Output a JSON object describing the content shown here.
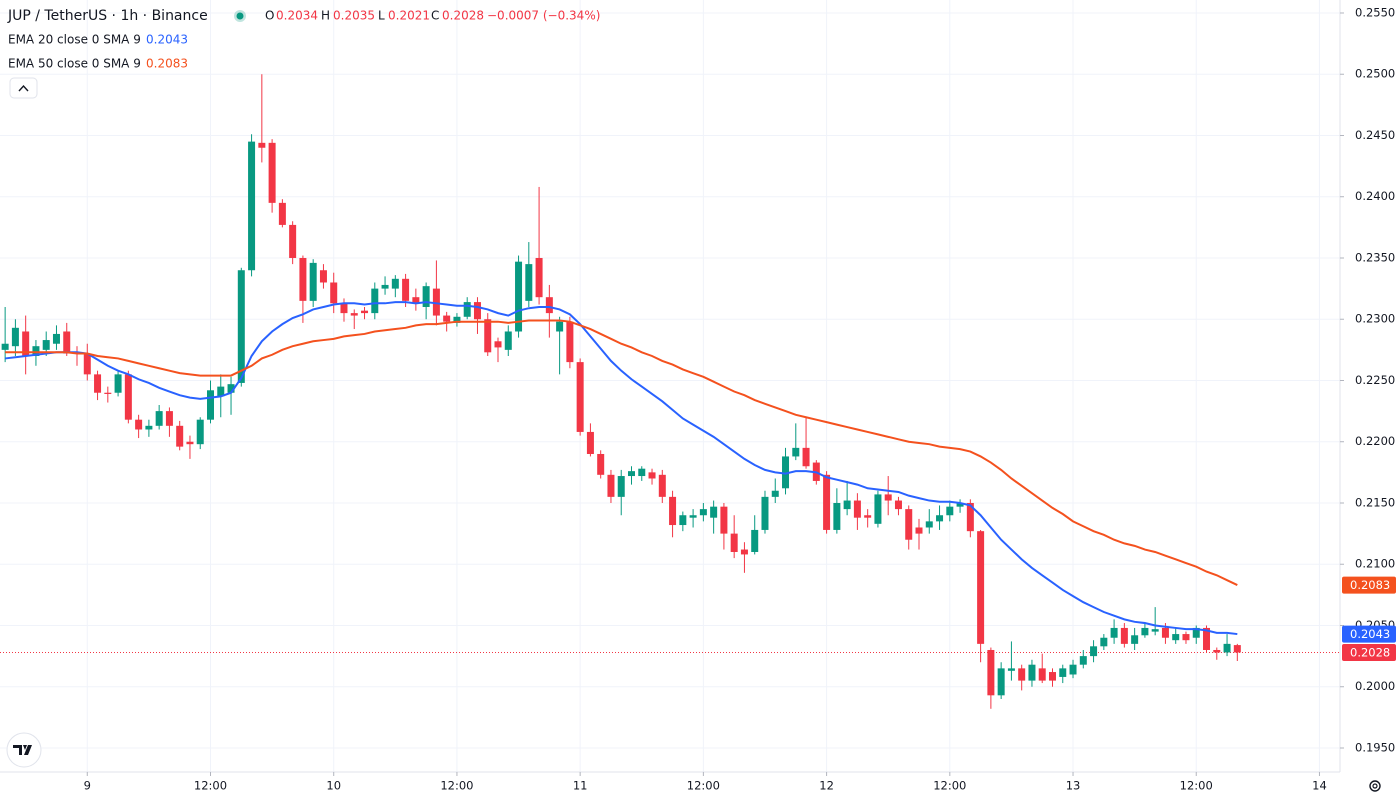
{
  "chart_data": {
    "type": "candlestick",
    "title": "JUP / TetherUS · 1h · Binance",
    "ohlc": [
      {
        "name": "O",
        "value": 0.2034
      },
      {
        "name": "H",
        "value": 0.2035
      },
      {
        "name": "L",
        "value": 0.2021
      },
      {
        "name": "C",
        "value": 0.2028
      }
    ],
    "change": "−0.0007 (−0.34%)",
    "up_color": "#089981",
    "down_color": "#f23645",
    "xlim": [
      -8.5,
      122
    ],
    "ylim": [
      0.19304,
      0.25606
    ],
    "grid": true,
    "xticks": [
      {
        "value": 0,
        "label": "9"
      },
      {
        "value": 12,
        "label": "12:00"
      },
      {
        "value": 24,
        "label": "10"
      },
      {
        "value": 36,
        "label": "12:00"
      },
      {
        "value": 48,
        "label": "11"
      },
      {
        "value": 60,
        "label": "12:00"
      },
      {
        "value": 72,
        "label": "12"
      },
      {
        "value": 84,
        "label": "12:00"
      },
      {
        "value": 96,
        "label": "13"
      },
      {
        "value": 108,
        "label": "12:00"
      },
      {
        "value": 120,
        "label": "14"
      }
    ],
    "yticks": [
      {
        "value": 0.195,
        "label": "0.1950"
      },
      {
        "value": 0.2,
        "label": "0.2000"
      },
      {
        "value": 0.205,
        "label": "0.2050"
      },
      {
        "value": 0.21,
        "label": "0.2100"
      },
      {
        "value": 0.215,
        "label": "0.2150"
      },
      {
        "value": 0.22,
        "label": "0.2200"
      },
      {
        "value": 0.225,
        "label": "0.2250"
      },
      {
        "value": 0.23,
        "label": "0.2300"
      },
      {
        "value": 0.235,
        "label": "0.2350"
      },
      {
        "value": 0.24,
        "label": "0.2400"
      },
      {
        "value": 0.245,
        "label": "0.2450"
      },
      {
        "value": 0.25,
        "label": "0.2500"
      },
      {
        "value": 0.255,
        "label": "0.2550"
      }
    ],
    "x": [
      -8,
      -7,
      -6,
      -5,
      -4,
      -3,
      -2,
      -1,
      0,
      1,
      2,
      3,
      4,
      5,
      6,
      7,
      8,
      9,
      10,
      11,
      12,
      13,
      14,
      15,
      16,
      17,
      18,
      19,
      20,
      21,
      22,
      23,
      24,
      25,
      26,
      27,
      28,
      29,
      30,
      31,
      32,
      33,
      34,
      35,
      36,
      37,
      38,
      39,
      40,
      41,
      42,
      43,
      44,
      45,
      46,
      47,
      48,
      49,
      50,
      51,
      52,
      53,
      54,
      55,
      56,
      57,
      58,
      59,
      60,
      61,
      62,
      63,
      64,
      65,
      66,
      67,
      68,
      69,
      70,
      71,
      72,
      73,
      74,
      75,
      76,
      77,
      78,
      79,
      80,
      81,
      82,
      83,
      84,
      85,
      86,
      87,
      88,
      89,
      90,
      91,
      92,
      93,
      94,
      95,
      96,
      97,
      98,
      99,
      100,
      101,
      102,
      103,
      104,
      105,
      106,
      107,
      108,
      109,
      110,
      111,
      112
    ],
    "open": [
      0.2275,
      0.2278,
      0.229,
      0.227,
      0.2275,
      0.228,
      0.229,
      0.2273,
      0.2272,
      0.2255,
      0.224,
      0.224,
      0.2255,
      0.2218,
      0.221,
      0.2213,
      0.2225,
      0.2213,
      0.22,
      0.2198,
      0.2218,
      0.2237,
      0.224,
      0.2248,
      0.234,
      0.2444,
      0.2444,
      0.2395,
      0.2377,
      0.235,
      0.2315,
      0.234,
      0.233,
      0.2313,
      0.2305,
      0.2307,
      0.2305,
      0.2325,
      0.2325,
      0.2333,
      0.2318,
      0.231,
      0.2325,
      0.2303,
      0.2297,
      0.2302,
      0.2314,
      0.23,
      0.2282,
      0.2275,
      0.229,
      0.2315,
      0.235,
      0.2318,
      0.229,
      0.2298,
      0.2265,
      0.2208,
      0.219,
      0.2173,
      0.2155,
      0.2172,
      0.2172,
      0.2175,
      0.2173,
      0.2155,
      0.2132,
      0.2138,
      0.214,
      0.2138,
      0.2147,
      0.2125,
      0.2112,
      0.211,
      0.2128,
      0.2155,
      0.2162,
      0.2188,
      0.2195,
      0.2183,
      0.2173,
      0.2128,
      0.2145,
      0.2152,
      0.214,
      0.2133,
      0.2157,
      0.2152,
      0.2145,
      0.213,
      0.213,
      0.2135,
      0.214,
      0.2147,
      0.215,
      0.2127,
      0.203,
      0.1993,
      0.2013,
      0.2015,
      0.2005,
      0.2015,
      0.2012,
      0.2008,
      0.201,
      0.2018,
      0.2025,
      0.2033,
      0.204,
      0.2048,
      0.2035,
      0.2042,
      0.2045,
      0.2048,
      0.2038,
      0.2043,
      0.204,
      0.2048,
      0.203,
      0.2028,
      0.2034
    ],
    "high": [
      0.231,
      0.23,
      0.2303,
      0.2283,
      0.229,
      0.2295,
      0.2297,
      0.2278,
      0.228,
      0.2258,
      0.2245,
      0.2258,
      0.2258,
      0.2222,
      0.2218,
      0.223,
      0.2228,
      0.2217,
      0.2205,
      0.222,
      0.225,
      0.2255,
      0.2253,
      0.2342,
      0.2451,
      0.25,
      0.2447,
      0.2398,
      0.238,
      0.2352,
      0.2349,
      0.2345,
      0.2338,
      0.2317,
      0.2308,
      0.231,
      0.233,
      0.2335,
      0.2336,
      0.2337,
      0.2325,
      0.233,
      0.2348,
      0.2306,
      0.2305,
      0.2318,
      0.2318,
      0.2305,
      0.2285,
      0.2295,
      0.2352,
      0.2363,
      0.2408,
      0.2328,
      0.2302,
      0.2302,
      0.2268,
      0.2215,
      0.2193,
      0.2177,
      0.2177,
      0.218,
      0.218,
      0.2178,
      0.2177,
      0.216,
      0.2143,
      0.2145,
      0.215,
      0.2152,
      0.215,
      0.214,
      0.2118,
      0.214,
      0.216,
      0.217,
      0.2195,
      0.2215,
      0.222,
      0.2185,
      0.2176,
      0.2162,
      0.2168,
      0.2158,
      0.2145,
      0.216,
      0.2172,
      0.2155,
      0.2148,
      0.2137,
      0.2145,
      0.2148,
      0.2152,
      0.2153,
      0.2153,
      0.2128,
      0.2032,
      0.202,
      0.2037,
      0.2018,
      0.2022,
      0.2027,
      0.2015,
      0.2018,
      0.2022,
      0.203,
      0.2038,
      0.2043,
      0.2055,
      0.2052,
      0.2048,
      0.2052,
      0.2065,
      0.2052,
      0.2048,
      0.2045,
      0.205,
      0.205,
      0.2032,
      0.2043,
      0.2035
    ],
    "low": [
      0.2265,
      0.227,
      0.2255,
      0.2262,
      0.227,
      0.2275,
      0.227,
      0.2262,
      0.225,
      0.2234,
      0.2232,
      0.2237,
      0.2215,
      0.2203,
      0.2204,
      0.221,
      0.2204,
      0.2193,
      0.2186,
      0.2194,
      0.2215,
      0.222,
      0.2222,
      0.2245,
      0.2335,
      0.2428,
      0.2387,
      0.2375,
      0.2345,
      0.2297,
      0.231,
      0.2325,
      0.2305,
      0.2298,
      0.2292,
      0.23,
      0.23,
      0.232,
      0.2318,
      0.231,
      0.2307,
      0.23,
      0.2295,
      0.229,
      0.2294,
      0.23,
      0.2288,
      0.227,
      0.2265,
      0.227,
      0.2285,
      0.231,
      0.2312,
      0.2285,
      0.2255,
      0.226,
      0.2205,
      0.2188,
      0.217,
      0.215,
      0.214,
      0.2165,
      0.2168,
      0.2165,
      0.215,
      0.2122,
      0.2127,
      0.213,
      0.2135,
      0.2125,
      0.2112,
      0.2105,
      0.2093,
      0.2108,
      0.2125,
      0.215,
      0.2157,
      0.2185,
      0.2178,
      0.2165,
      0.2125,
      0.2125,
      0.214,
      0.2128,
      0.213,
      0.213,
      0.214,
      0.214,
      0.2112,
      0.2112,
      0.2125,
      0.2128,
      0.2135,
      0.2142,
      0.2122,
      0.202,
      0.1982,
      0.199,
      0.2005,
      0.1997,
      0.2,
      0.2003,
      0.2,
      0.2003,
      0.2007,
      0.2015,
      0.202,
      0.203,
      0.2035,
      0.2032,
      0.203,
      0.204,
      0.2042,
      0.2035,
      0.2035,
      0.2035,
      0.2035,
      0.2028,
      0.2022,
      0.2025,
      0.2021
    ],
    "close": [
      0.228,
      0.2293,
      0.227,
      0.2278,
      0.2283,
      0.2288,
      0.2272,
      0.2272,
      0.2255,
      0.224,
      0.2239,
      0.2255,
      0.2218,
      0.221,
      0.2213,
      0.2225,
      0.2213,
      0.2196,
      0.2198,
      0.2218,
      0.2242,
      0.2245,
      0.2247,
      0.234,
      0.2445,
      0.244,
      0.2395,
      0.2377,
      0.235,
      0.2315,
      0.2346,
      0.233,
      0.2313,
      0.2305,
      0.2303,
      0.2305,
      0.2325,
      0.2328,
      0.2333,
      0.2315,
      0.2313,
      0.2327,
      0.2303,
      0.2298,
      0.2302,
      0.2314,
      0.23,
      0.2273,
      0.2277,
      0.229,
      0.2347,
      0.2345,
      0.2318,
      0.2305,
      0.2298,
      0.2265,
      0.2208,
      0.219,
      0.2173,
      0.2155,
      0.2172,
      0.2176,
      0.2178,
      0.217,
      0.2155,
      0.2132,
      0.214,
      0.214,
      0.2145,
      0.2147,
      0.2125,
      0.211,
      0.2108,
      0.2128,
      0.2155,
      0.216,
      0.2188,
      0.2195,
      0.218,
      0.2168,
      0.2128,
      0.215,
      0.2152,
      0.2138,
      0.2138,
      0.2157,
      0.2152,
      0.2145,
      0.212,
      0.2125,
      0.2135,
      0.214,
      0.2147,
      0.215,
      0.2127,
      0.2035,
      0.1993,
      0.2015,
      0.2015,
      0.2005,
      0.2018,
      0.2005,
      0.2005,
      0.2015,
      0.2018,
      0.2025,
      0.2033,
      0.204,
      0.2048,
      0.2035,
      0.2042,
      0.2048,
      0.2047,
      0.204,
      0.2043,
      0.2038,
      0.2048,
      0.203,
      0.2028,
      0.2035,
      0.2028
    ],
    "series": [
      {
        "name": "EMA 20 close 0 SMA 9",
        "color": "#2962ff",
        "last": 0.2043,
        "values": [
          0.2268,
          0.2269,
          0.227,
          0.2271,
          0.2272,
          0.2273,
          0.2273,
          0.2273,
          0.2272,
          0.2267,
          0.2262,
          0.2258,
          0.2255,
          0.2251,
          0.2248,
          0.2244,
          0.2241,
          0.2238,
          0.2236,
          0.2235,
          0.2236,
          0.2237,
          0.224,
          0.2252,
          0.227,
          0.2282,
          0.229,
          0.2296,
          0.2301,
          0.2304,
          0.2308,
          0.231,
          0.2312,
          0.2313,
          0.2313,
          0.2312,
          0.2313,
          0.2313,
          0.2314,
          0.2314,
          0.2313,
          0.2314,
          0.2313,
          0.2312,
          0.2311,
          0.2311,
          0.231,
          0.2308,
          0.2305,
          0.2303,
          0.2307,
          0.2309,
          0.231,
          0.231,
          0.2308,
          0.2304,
          0.2296,
          0.2286,
          0.2276,
          0.2266,
          0.2258,
          0.2251,
          0.2245,
          0.2239,
          0.2233,
          0.2226,
          0.2219,
          0.2214,
          0.2209,
          0.2204,
          0.2198,
          0.2192,
          0.2186,
          0.2181,
          0.2177,
          0.2175,
          0.2174,
          0.2176,
          0.2176,
          0.2175,
          0.2171,
          0.2169,
          0.2167,
          0.2165,
          0.2162,
          0.2161,
          0.216,
          0.2159,
          0.2156,
          0.2154,
          0.2152,
          0.2151,
          0.2151,
          0.215,
          0.2148,
          0.214,
          0.213,
          0.212,
          0.2112,
          0.2104,
          0.2097,
          0.2091,
          0.2085,
          0.2079,
          0.2074,
          0.2069,
          0.2065,
          0.2061,
          0.2058,
          0.2055,
          0.2053,
          0.2052,
          0.205,
          0.2049,
          0.2048,
          0.2047,
          0.2047,
          0.2046,
          0.2044,
          0.2044,
          0.2043
        ]
      },
      {
        "name": "EMA 50 close 0 SMA 9",
        "color": "#f4511e",
        "last": 0.2083,
        "values": [
          0.2273,
          0.2273,
          0.2273,
          0.2273,
          0.2273,
          0.2273,
          0.2273,
          0.2272,
          0.2272,
          0.227,
          0.2269,
          0.2268,
          0.2266,
          0.2264,
          0.2262,
          0.226,
          0.2258,
          0.2256,
          0.2255,
          0.2254,
          0.2254,
          0.2254,
          0.2254,
          0.2258,
          0.2262,
          0.2268,
          0.2271,
          0.2275,
          0.2278,
          0.228,
          0.2282,
          0.2283,
          0.2284,
          0.2286,
          0.2287,
          0.2288,
          0.229,
          0.2291,
          0.2292,
          0.2293,
          0.2295,
          0.2296,
          0.2296,
          0.2297,
          0.2298,
          0.2298,
          0.2298,
          0.2298,
          0.2298,
          0.2297,
          0.2298,
          0.2299,
          0.2299,
          0.2299,
          0.2299,
          0.2298,
          0.2295,
          0.2292,
          0.2288,
          0.2284,
          0.228,
          0.2277,
          0.2273,
          0.227,
          0.2266,
          0.2263,
          0.2259,
          0.2256,
          0.2253,
          0.2249,
          0.2245,
          0.2241,
          0.2238,
          0.2234,
          0.2231,
          0.2228,
          0.2225,
          0.2222,
          0.222,
          0.2218,
          0.2216,
          0.2214,
          0.2212,
          0.221,
          0.2208,
          0.2206,
          0.2204,
          0.2202,
          0.22,
          0.2199,
          0.2198,
          0.2196,
          0.2195,
          0.2194,
          0.2192,
          0.2188,
          0.2183,
          0.2177,
          0.217,
          0.2164,
          0.2158,
          0.2152,
          0.2146,
          0.2141,
          0.2135,
          0.2131,
          0.2127,
          0.2124,
          0.212,
          0.2117,
          0.2115,
          0.2112,
          0.211,
          0.2107,
          0.2104,
          0.2101,
          0.2098,
          0.2094,
          0.2091,
          0.2087,
          0.2083
        ]
      }
    ],
    "price_tags": [
      {
        "value": 0.2083,
        "color": "#f4511e"
      },
      {
        "value": 0.2043,
        "color": "#2962ff"
      },
      {
        "value": 0.2028,
        "color": "#f23645"
      }
    ],
    "last_price": 0.2028
  }
}
